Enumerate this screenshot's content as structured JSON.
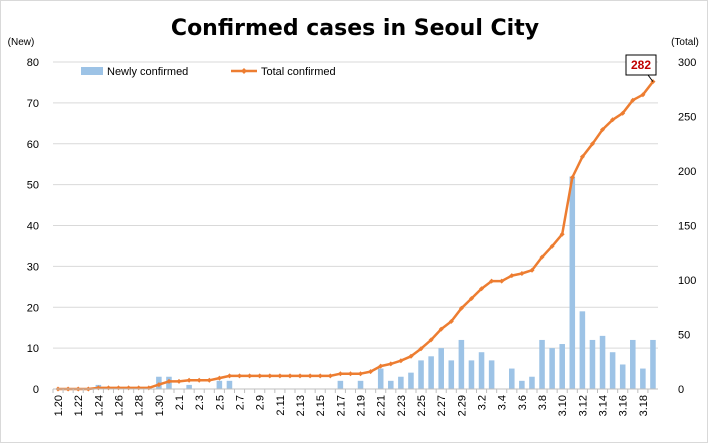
{
  "chart_data": {
    "type": "bar+line",
    "title": "Confirmed cases in Seoul City",
    "y_left_unit": "(New)",
    "y_right_unit": "(Total)",
    "ylim_left": [
      0,
      80
    ],
    "ylim_right": [
      0,
      300
    ],
    "yticks_left": [
      0,
      10,
      20,
      30,
      40,
      50,
      60,
      70,
      80
    ],
    "yticks_right": [
      0,
      50,
      100,
      150,
      200,
      250,
      300
    ],
    "x": [
      "1.20",
      "1.21",
      "1.22",
      "1.23",
      "1.24",
      "1.25",
      "1.26",
      "1.27",
      "1.28",
      "1.29",
      "1.30",
      "1.31",
      "2.1",
      "2.2",
      "2.3",
      "2.4",
      "2.5",
      "2.6",
      "2.7",
      "2.8",
      "2.9",
      "2.10",
      "2.11",
      "2.12",
      "2.13",
      "2.14",
      "2.15",
      "2.16",
      "2.17",
      "2.18",
      "2.19",
      "2.20",
      "2.21",
      "2.22",
      "2.23",
      "2.24",
      "2.25",
      "2.26",
      "2.27",
      "2.28",
      "2.29",
      "3.1",
      "3.2",
      "3.3",
      "3.4",
      "3.5",
      "3.6",
      "3.7",
      "3.8",
      "3.9",
      "3.10",
      "3.11",
      "3.12",
      "3.13",
      "3.14",
      "3.15",
      "3.16",
      "3.17",
      "3.18",
      "3.19"
    ],
    "x_tick_labels": [
      "1.20",
      "1.22",
      "1.24",
      "1.26",
      "1.28",
      "1.30",
      "2.1",
      "2.3",
      "2.5",
      "2.7",
      "2.9",
      "2.11",
      "2.13",
      "2.15",
      "2.17",
      "2.19",
      "2.21",
      "2.23",
      "2.25",
      "2.27",
      "2.29",
      "3.2",
      "3.4",
      "3.6",
      "3.8",
      "3.10",
      "3.12",
      "3.14",
      "3.16",
      "3.18"
    ],
    "series": [
      {
        "name": "Newly confirmed",
        "kind": "bar",
        "axis": "left",
        "color": "#9dc3e6",
        "values": [
          0,
          0,
          0,
          0,
          1,
          0,
          0,
          0,
          0,
          0,
          3,
          3,
          0,
          1,
          0,
          0,
          2,
          2,
          0,
          0,
          0,
          0,
          0,
          0,
          0,
          0,
          0,
          0,
          2,
          0,
          2,
          0,
          5,
          2,
          3,
          4,
          7,
          8,
          10,
          7,
          12,
          7,
          9,
          7,
          0,
          5,
          2,
          3,
          12,
          10,
          11,
          52,
          19,
          12,
          13,
          9,
          6,
          12,
          5,
          12
        ]
      },
      {
        "name": "Total confirmed",
        "kind": "line",
        "axis": "right",
        "color": "#ed7d31",
        "values": [
          0,
          0,
          0,
          0,
          1,
          1,
          1,
          1,
          1,
          1,
          4,
          7,
          7,
          8,
          8,
          8,
          10,
          12,
          12,
          12,
          12,
          12,
          12,
          12,
          12,
          12,
          12,
          12,
          14,
          14,
          14,
          16,
          21,
          23,
          26,
          30,
          37,
          45,
          55,
          62,
          74,
          83,
          92,
          99,
          99,
          104,
          106,
          109,
          121,
          131,
          142,
          194,
          213,
          225,
          238,
          247,
          253,
          265,
          270,
          282
        ]
      }
    ],
    "callout": {
      "text": "282",
      "series": "Total confirmed",
      "index": 59
    }
  }
}
